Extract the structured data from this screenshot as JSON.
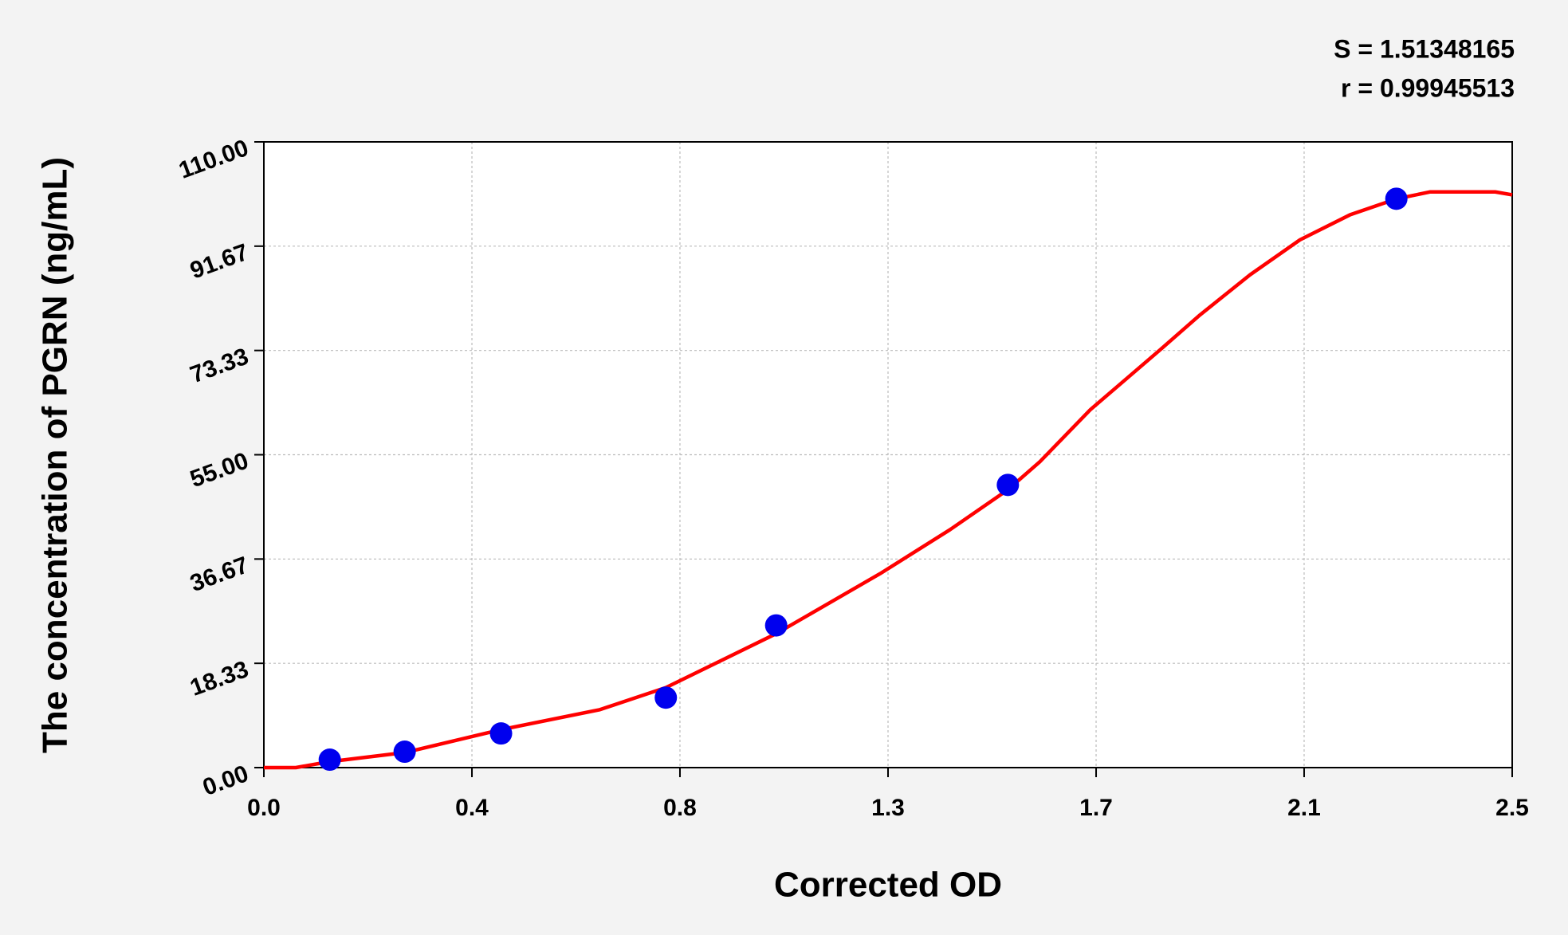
{
  "chart_data": {
    "type": "scatter",
    "x_label": "Corrected OD",
    "y_label": "The concentration of PGRN (ng/mL)",
    "annotations": [
      "S = 1.51348165",
      "r = 0.99945513"
    ],
    "xlim": [
      0,
      2.5
    ],
    "xticks": [
      {
        "value": 0,
        "label": "0.0"
      },
      {
        "value": 0.4167,
        "label": "0.4"
      },
      {
        "value": 0.8333,
        "label": "0.8"
      },
      {
        "value": 1.25,
        "label": "1.3"
      },
      {
        "value": 1.6667,
        "label": "1.7"
      },
      {
        "value": 2.0833,
        "label": "2.1"
      },
      2.5
    ],
    "ylim": [
      0,
      110
    ],
    "yticks": [
      {
        "value": 0,
        "label": "0.00"
      },
      {
        "value": 18.333,
        "label": "18.33"
      },
      {
        "value": 36.667,
        "label": "36.67"
      },
      {
        "value": 55,
        "label": "55.00"
      },
      {
        "value": 73.333,
        "label": "73.33"
      },
      {
        "value": 91.667,
        "label": "91.67"
      },
      {
        "value": 110,
        "label": "110.00"
      }
    ],
    "grid": true,
    "series": [
      {
        "style": "line",
        "color": "#ff0000",
        "x": [
          0,
          0.064,
          0.132,
          0.282,
          0.475,
          0.673,
          0.805,
          1.026,
          1.234,
          1.374,
          1.49,
          1.554,
          1.655,
          1.795,
          1.875,
          1.975,
          2.075,
          2.175,
          2.268,
          2.336,
          2.466,
          2.5
        ],
        "values": [
          0,
          0,
          1.05,
          2.64,
          6.68,
          10.19,
          14.06,
          23.55,
          34.09,
          41.82,
          48.85,
          53.77,
          62.91,
          73.45,
          79.6,
          86.63,
          92.78,
          97.17,
          99.98,
          101.21,
          101.21,
          100.69
        ]
      },
      {
        "style": "markers",
        "color": "#0000ee",
        "x": [
          0.132,
          0.282,
          0.475,
          0.805,
          1.026,
          1.49,
          2.268
        ],
        "values": [
          1.4,
          2.8,
          6.0,
          12.3,
          25.0,
          49.7,
          100.0
        ]
      }
    ]
  }
}
